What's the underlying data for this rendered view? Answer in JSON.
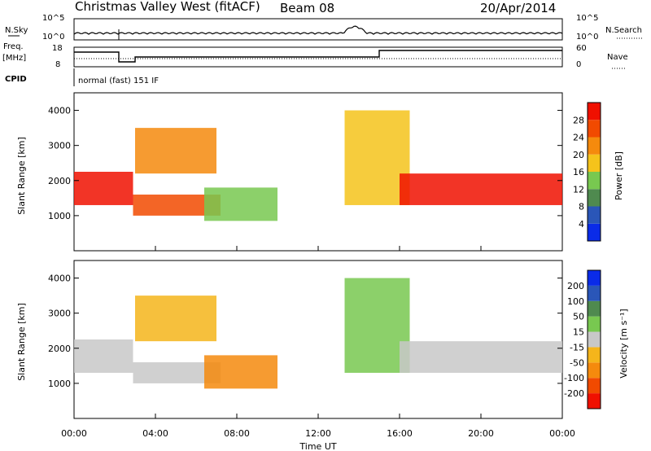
{
  "header": {
    "station": "Christmas Valley West (fitACF)",
    "beam": "Beam 08",
    "date": "20/Apr/2014",
    "mode": "normal (fast) 151 IF"
  },
  "summary": {
    "nsky_label": "N.Sky",
    "nsky_ticks": [
      "10^5",
      "10^0"
    ],
    "freq_label_1": "Freq.",
    "freq_label_2": "[MHz]",
    "freq_ticks": [
      "18",
      "8"
    ],
    "cpid_label": "CPID",
    "nsearch_label": "N.Search",
    "nsearch_ticks": [
      "10^5",
      "10^0"
    ],
    "nave_label": "Nave",
    "nave_ticks": [
      "60",
      "0"
    ]
  },
  "colors": {
    "power_scale": [
      "#0a2be8",
      "#2a56b8",
      "#4f8a4f",
      "#78c850",
      "#f5c31b",
      "#f58a0d",
      "#f14a00",
      "#f01000"
    ],
    "velocity_scale": [
      "#f01000",
      "#f14a00",
      "#f58a0d",
      "#f5b51b",
      "#c8c8c8",
      "#78c850",
      "#4f8a4f",
      "#2a56b8",
      "#0a2be8"
    ]
  },
  "chart_data": [
    {
      "type": "heatmap",
      "panel": "power",
      "ylabel": "Slant Range [km]",
      "xlabel": "Time UT",
      "xlim": [
        0,
        24
      ],
      "ylim": [
        0,
        4500
      ],
      "x_ticks": [
        "00:00",
        "04:00",
        "08:00",
        "12:00",
        "16:00",
        "20:00",
        "00:00"
      ],
      "y_ticks": [
        1000,
        2000,
        3000,
        4000
      ],
      "colorbar_label": "Power [dB]",
      "colorbar_ticks": [
        "28",
        "24",
        "20",
        "16",
        "12",
        "8",
        "4"
      ],
      "regions": [
        {
          "t0": 0.0,
          "t1": 2.9,
          "r0": 1300,
          "r1": 2250,
          "level": 7
        },
        {
          "t0": 2.9,
          "t1": 7.2,
          "r0": 1000,
          "r1": 1600,
          "level": 6
        },
        {
          "t0": 3.0,
          "t1": 7.0,
          "r0": 2200,
          "r1": 3500,
          "level": 5
        },
        {
          "t0": 6.4,
          "t1": 10.0,
          "r0": 850,
          "r1": 1800,
          "level": 3
        },
        {
          "t0": 13.3,
          "t1": 16.5,
          "r0": 1300,
          "r1": 4000,
          "level": 4
        },
        {
          "t0": 16.0,
          "t1": 24.0,
          "r0": 1300,
          "r1": 2200,
          "level": 7
        }
      ]
    },
    {
      "type": "heatmap",
      "panel": "velocity",
      "ylabel": "Slant Range [km]",
      "xlabel": "Time UT",
      "xlim": [
        0,
        24
      ],
      "ylim": [
        0,
        4500
      ],
      "x_ticks": [
        "00:00",
        "04:00",
        "08:00",
        "12:00",
        "16:00",
        "20:00",
        "00:00"
      ],
      "y_ticks": [
        1000,
        2000,
        3000,
        4000
      ],
      "colorbar_label": "Velocity [m s⁻¹]",
      "colorbar_ticks": [
        "200",
        "100",
        "50",
        "15",
        "-15",
        "-50",
        "-100",
        "-200"
      ],
      "regions": [
        {
          "t0": 0.0,
          "t1": 2.9,
          "r0": 1300,
          "r1": 2250,
          "level": 4
        },
        {
          "t0": 2.9,
          "t1": 7.2,
          "r0": 1000,
          "r1": 1600,
          "level": 4
        },
        {
          "t0": 3.0,
          "t1": 7.0,
          "r0": 2200,
          "r1": 3500,
          "level": 3
        },
        {
          "t0": 6.4,
          "t1": 10.0,
          "r0": 850,
          "r1": 1800,
          "level": 2
        },
        {
          "t0": 13.3,
          "t1": 16.5,
          "r0": 1300,
          "r1": 4000,
          "level": 5
        },
        {
          "t0": 16.0,
          "t1": 24.0,
          "r0": 1300,
          "r1": 2200,
          "level": 4
        }
      ]
    }
  ]
}
